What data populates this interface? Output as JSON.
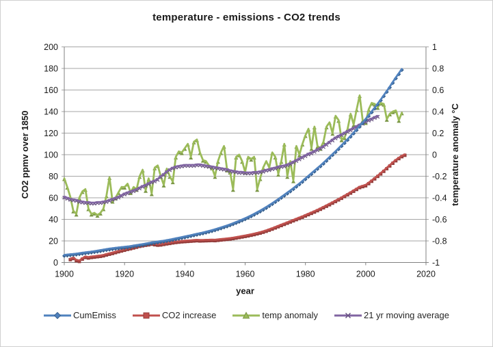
{
  "chart_data": {
    "type": "line",
    "title": "temperature - emissions - CO2 trends",
    "xlabel": "year",
    "ylabel_left": "CO2 ppmv over 1850",
    "ylabel_right": "temperature anomaly °C",
    "xlim": [
      1900,
      2020
    ],
    "ylim_left": [
      0,
      200
    ],
    "ylim_right": [
      -1,
      1
    ],
    "x_ticks": [
      1900,
      1920,
      1940,
      1960,
      1980,
      2000,
      2020
    ],
    "y_ticks_left": [
      0,
      20,
      40,
      60,
      80,
      100,
      120,
      140,
      160,
      180,
      200
    ],
    "y_ticks_right": [
      -1,
      -0.8,
      -0.6,
      -0.4,
      -0.2,
      0,
      0.2,
      0.4,
      0.6,
      0.8,
      1
    ],
    "grid": "horizontal",
    "legend_position": "bottom",
    "colors": {
      "grid": "#a6a6a6",
      "axis": "#808080",
      "text": "#1a1a1a",
      "figure_border": "#cfcfcf"
    },
    "series": [
      {
        "name": "CumEmiss",
        "axis": "left",
        "color": "#4F81BD",
        "marker_color": "#38618f",
        "marker": "diamond",
        "x_start": 1900,
        "values": [
          7.0,
          7.3,
          7.6,
          7.9,
          8.2,
          8.6,
          9.0,
          9.4,
          9.7,
          10.1,
          10.5,
          10.9,
          11.4,
          11.9,
          12.4,
          12.8,
          13.2,
          13.6,
          13.9,
          14.2,
          14.5,
          14.8,
          15.2,
          15.7,
          16.1,
          16.6,
          17.0,
          17.5,
          18.0,
          18.6,
          19.0,
          19.4,
          19.8,
          20.2,
          20.7,
          21.2,
          21.8,
          22.4,
          22.9,
          23.5,
          24.1,
          24.7,
          25.3,
          26.0,
          26.6,
          27.2,
          27.8,
          28.5,
          29.2,
          29.9,
          30.7,
          31.6,
          32.5,
          33.4,
          34.3,
          35.3,
          36.4,
          37.5,
          38.6,
          39.8,
          41.0,
          42.3,
          43.7,
          45.1,
          46.6,
          48.1,
          49.7,
          51.4,
          53.2,
          55.0,
          56.9,
          58.8,
          60.8,
          62.8,
          64.8,
          66.8,
          68.9,
          71.1,
          73.3,
          75.6,
          78.0,
          80.4,
          82.8,
          85.2,
          87.6,
          90.0,
          92.5,
          95.1,
          97.8,
          100.5,
          103.2,
          106.0,
          108.8,
          111.6,
          114.5,
          117.5,
          120.5,
          123.6,
          126.8,
          130.0,
          133.2,
          136.6,
          140.1,
          143.7,
          147.4,
          151.2,
          155.1,
          159.1,
          163.2,
          167.4,
          171.6,
          175.5,
          179.5
        ]
      },
      {
        "name": "CO2 increase",
        "axis": "left",
        "color": "#C0504D",
        "marker_color": "#943d3b",
        "marker": "square",
        "x_start": 1902,
        "values": [
          3.5,
          4.5,
          2.5,
          1.8,
          4.0,
          5.5,
          5.0,
          5.5,
          5.8,
          6.2,
          6.5,
          7.0,
          7.8,
          8.5,
          9.2,
          10.0,
          10.8,
          11.5,
          12.2,
          13.0,
          13.6,
          14.3,
          15.0,
          15.8,
          16.3,
          16.8,
          17.2,
          17.8,
          17.3,
          16.9,
          17.1,
          17.6,
          18.1,
          18.5,
          19.0,
          19.4,
          19.7,
          20.0,
          20.2,
          20.4,
          20.6,
          20.8,
          21.0,
          20.8,
          20.9,
          21.0,
          21.1,
          21.2,
          21.1,
          21.4,
          21.7,
          22.0,
          22.3,
          22.6,
          23.0,
          23.5,
          24.0,
          24.5,
          25.0,
          25.5,
          26.1,
          26.7,
          27.4,
          28.1,
          28.9,
          29.8,
          30.8,
          31.8,
          32.9,
          34.0,
          35.1,
          36.2,
          37.3,
          38.4,
          39.5,
          40.6,
          41.7,
          42.8,
          44.0,
          45.2,
          46.4,
          47.6,
          48.9,
          50.2,
          51.6,
          53.0,
          54.4,
          55.9,
          57.4,
          58.9,
          60.4,
          62.0,
          63.6,
          65.2,
          66.9,
          68.6,
          70.3,
          71.2,
          72.0,
          74.0,
          76.2,
          78.4,
          80.7,
          83.0,
          85.4,
          87.9,
          90.4,
          92.9,
          95.2,
          97.2,
          99.0,
          100.3
        ]
      },
      {
        "name": "temp anomaly",
        "axis": "right",
        "color": "#9BBB59",
        "marker_color": "#7a9646",
        "marker": "triangle",
        "x_start": 1900,
        "values": [
          -0.22,
          -0.3,
          -0.39,
          -0.52,
          -0.55,
          -0.4,
          -0.34,
          -0.32,
          -0.5,
          -0.55,
          -0.54,
          -0.56,
          -0.54,
          -0.5,
          -0.38,
          -0.21,
          -0.43,
          -0.4,
          -0.35,
          -0.3,
          -0.3,
          -0.27,
          -0.35,
          -0.3,
          -0.32,
          -0.2,
          -0.14,
          -0.33,
          -0.22,
          -0.36,
          -0.12,
          -0.1,
          -0.2,
          -0.28,
          -0.13,
          -0.2,
          -0.25,
          -0.02,
          0.03,
          0.02,
          0.06,
          0.1,
          -0.02,
          0.12,
          0.14,
          0.02,
          -0.05,
          -0.06,
          -0.1,
          -0.12,
          -0.2,
          -0.06,
          0.02,
          0.08,
          -0.14,
          -0.16,
          -0.32,
          -0.02,
          0.0,
          -0.06,
          -0.16,
          -0.02,
          -0.04,
          -0.02,
          -0.32,
          -0.22,
          -0.12,
          -0.06,
          -0.12,
          0.02,
          -0.02,
          -0.18,
          -0.06,
          0.1,
          -0.2,
          -0.06,
          -0.24,
          0.08,
          0.0,
          0.1,
          0.18,
          0.24,
          0.06,
          0.26,
          0.08,
          0.06,
          0.12,
          0.26,
          0.3,
          0.2,
          0.36,
          0.32,
          0.14,
          0.16,
          0.24,
          0.38,
          0.28,
          0.42,
          0.55,
          0.32,
          0.3,
          0.42,
          0.48,
          0.47,
          0.44,
          0.48,
          0.47,
          0.33,
          0.38,
          0.4,
          0.41,
          0.32,
          0.39
        ]
      },
      {
        "name": "21 yr moving average",
        "axis": "right",
        "color": "#8064A2",
        "marker_color": "#66507f",
        "marker": "x",
        "x_start": 1900,
        "values": [
          -0.39,
          -0.4,
          -0.41,
          -0.415,
          -0.42,
          -0.43,
          -0.435,
          -0.44,
          -0.44,
          -0.445,
          -0.445,
          -0.44,
          -0.44,
          -0.435,
          -0.43,
          -0.42,
          -0.41,
          -0.4,
          -0.39,
          -0.375,
          -0.36,
          -0.35,
          -0.34,
          -0.33,
          -0.32,
          -0.305,
          -0.29,
          -0.28,
          -0.265,
          -0.25,
          -0.24,
          -0.225,
          -0.2,
          -0.18,
          -0.155,
          -0.135,
          -0.12,
          -0.11,
          -0.105,
          -0.1,
          -0.095,
          -0.095,
          -0.095,
          -0.095,
          -0.09,
          -0.09,
          -0.095,
          -0.1,
          -0.105,
          -0.11,
          -0.115,
          -0.12,
          -0.125,
          -0.13,
          -0.135,
          -0.145,
          -0.15,
          -0.155,
          -0.16,
          -0.16,
          -0.165,
          -0.165,
          -0.165,
          -0.16,
          -0.16,
          -0.155,
          -0.15,
          -0.14,
          -0.135,
          -0.125,
          -0.12,
          -0.11,
          -0.105,
          -0.1,
          -0.09,
          -0.08,
          -0.065,
          -0.05,
          -0.035,
          -0.02,
          -0.005,
          0.01,
          0.02,
          0.035,
          0.05,
          0.065,
          0.08,
          0.1,
          0.12,
          0.14,
          0.16,
          0.175,
          0.19,
          0.205,
          0.22,
          0.235,
          0.25,
          0.265,
          0.28,
          0.295,
          0.31,
          0.325,
          0.335,
          0.35,
          0.36
        ]
      }
    ]
  }
}
